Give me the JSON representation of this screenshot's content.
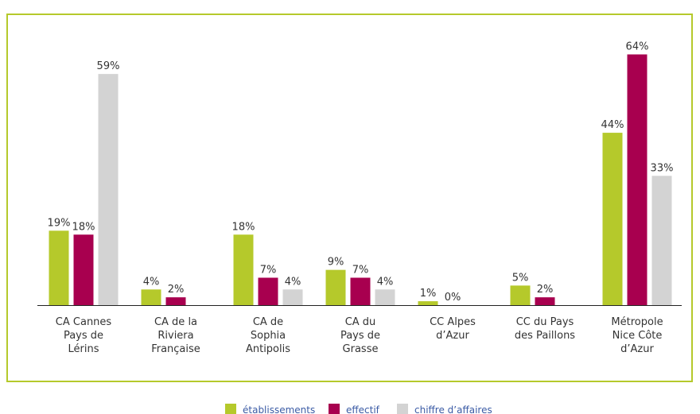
{
  "chart_data": {
    "type": "bar",
    "categories": [
      [
        "CA Cannes",
        "Pays de",
        "Lérins"
      ],
      [
        "CA de la",
        "Riviera",
        "Française"
      ],
      [
        "CA de",
        "Sophia",
        "Antipolis"
      ],
      [
        "CA du",
        "Pays de",
        "Grasse"
      ],
      [
        "CC Alpes",
        "d’Azur"
      ],
      [
        "CC du Pays",
        "des Paillons"
      ],
      [
        "Métropole",
        "Nice Côte",
        "d’Azur"
      ]
    ],
    "series": [
      {
        "name": "établissements",
        "color": "#b5c92b",
        "values": [
          19,
          4,
          18,
          9,
          1,
          5,
          44
        ],
        "value_labels": [
          "19%",
          "4%",
          "18%",
          "9%",
          "1%",
          "5%",
          "44%"
        ]
      },
      {
        "name": "effectif",
        "color": "#a8004f",
        "values": [
          18,
          2,
          7,
          7,
          0,
          2,
          64
        ],
        "value_labels": [
          "18%",
          "2%",
          "7%",
          "7%",
          "0%",
          "2%",
          "64%"
        ]
      },
      {
        "name": "chiffre d’affaires",
        "color": "#d3d3d3",
        "values": [
          59,
          null,
          4,
          4,
          null,
          null,
          33
        ],
        "value_labels": [
          "59%",
          null,
          "4%",
          "4%",
          null,
          null,
          "33%"
        ]
      }
    ],
    "legend": "bottom"
  }
}
